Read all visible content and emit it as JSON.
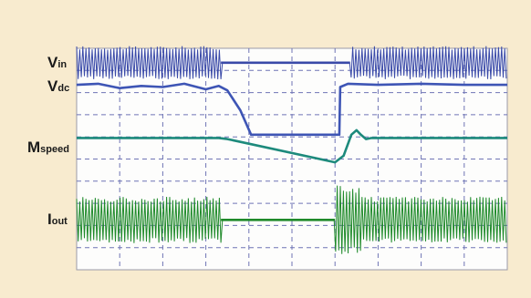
{
  "chart_data": {
    "type": "line",
    "title": "",
    "xlabel": "",
    "ylabel": "",
    "grid": true,
    "x_divisions": 10,
    "y_divisions": 10,
    "colors": {
      "background": "#f8ebcf",
      "plot_area": "#fdfdfc",
      "grid": "#6f74b5",
      "vin": "#3a4aa8",
      "vdc": "#3e55b5",
      "mspeed": "#1d8a7c",
      "iout": "#1f8a2a"
    },
    "channels": [
      {
        "id": "vin",
        "label_main": "V",
        "label_sub": "in"
      },
      {
        "id": "vdc",
        "label_main": "V",
        "label_sub": "dc"
      },
      {
        "id": "mspeed",
        "label_main": "M",
        "label_sub": "speed"
      },
      {
        "id": "iout",
        "label_main": "I",
        "label_sub": "out"
      }
    ],
    "series": [
      {
        "id": "vin",
        "kind": "burst-gap-burst",
        "center": 9.35,
        "amplitude": 0.75,
        "gap_level": 9.35,
        "gap": [
          3.35,
          6.35
        ]
      },
      {
        "id": "vdc",
        "kind": "polyline",
        "x": [
          0,
          0.5,
          1.0,
          1.5,
          2.0,
          2.5,
          3.0,
          3.3,
          3.5,
          3.8,
          4.05,
          4.5,
          5.0,
          5.5,
          6.0,
          6.1,
          6.12,
          6.3,
          7.0,
          8.0,
          9.0,
          10.0
        ],
        "y": [
          8.35,
          8.4,
          8.2,
          8.3,
          8.25,
          8.4,
          8.15,
          8.3,
          8.1,
          7.2,
          6.1,
          6.1,
          6.1,
          6.1,
          6.1,
          6.1,
          8.25,
          8.4,
          8.35,
          8.4,
          8.35,
          8.35
        ]
      },
      {
        "id": "mspeed",
        "kind": "polyline",
        "x": [
          0,
          3.3,
          3.5,
          6.0,
          6.2,
          6.38,
          6.5,
          6.6,
          6.72,
          6.85,
          7.0,
          8.0,
          9.0,
          10.0
        ],
        "y": [
          5.95,
          5.95,
          5.9,
          4.85,
          5.15,
          6.1,
          6.3,
          6.1,
          5.9,
          5.95,
          5.95,
          5.95,
          5.95,
          5.95
        ]
      },
      {
        "id": "iout",
        "kind": "burst-gap-burst",
        "center": 2.25,
        "amplitude": 1.05,
        "gap_level": 2.25,
        "gap": [
          3.35,
          6.0
        ],
        "envelope_after_gap": [
          6.0,
          6.6,
          1.5
        ]
      }
    ]
  }
}
